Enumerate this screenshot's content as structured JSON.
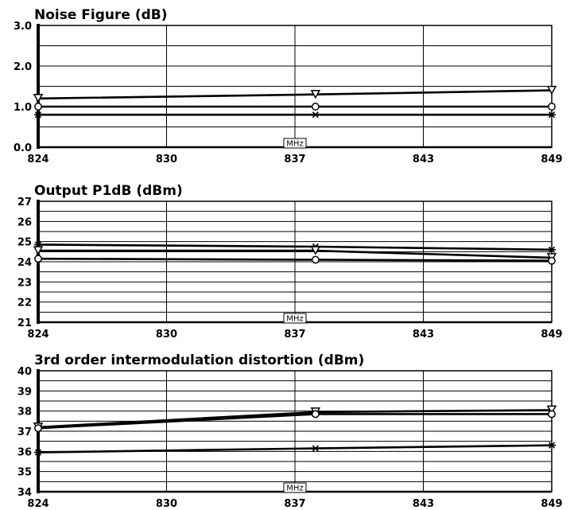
{
  "chart_data": [
    {
      "type": "line",
      "title": "Noise Figure (dB)",
      "unit_label": "MHz",
      "x": [
        824,
        837.5,
        849
      ],
      "x_ticks": [
        "824",
        "830",
        "837",
        "843",
        "849"
      ],
      "y_ticks": [
        "0.0",
        "1.0",
        "2.0",
        "3.0"
      ],
      "ylim": [
        0,
        3
      ],
      "grid": true,
      "series": [
        {
          "marker": "triangle",
          "values": [
            1.2,
            1.3,
            1.4
          ]
        },
        {
          "marker": "circle",
          "values": [
            1.0,
            1.0,
            1.0
          ]
        },
        {
          "marker": "asterisk",
          "values": [
            0.8,
            0.8,
            0.8
          ]
        }
      ]
    },
    {
      "type": "line",
      "title": "Output P1dB (dBm)",
      "unit_label": "MHz",
      "x": [
        824,
        837.5,
        849
      ],
      "x_ticks": [
        "824",
        "830",
        "837",
        "843",
        "849"
      ],
      "y_ticks": [
        "21",
        "22",
        "23",
        "24",
        "25",
        "26",
        "27"
      ],
      "ylim": [
        21,
        27
      ],
      "grid": true,
      "series": [
        {
          "marker": "asterisk",
          "values": [
            24.85,
            24.75,
            24.6
          ]
        },
        {
          "marker": "triangle",
          "values": [
            24.55,
            24.55,
            24.2
          ]
        },
        {
          "marker": "circle",
          "values": [
            24.15,
            24.1,
            24.05
          ]
        }
      ]
    },
    {
      "type": "line",
      "title": "3rd order intermodulation distortion (dBm)",
      "unit_label": "MHz",
      "x": [
        824,
        837.5,
        849
      ],
      "x_ticks": [
        "824",
        "830",
        "837",
        "843",
        "849"
      ],
      "y_ticks": [
        "34",
        "35",
        "36",
        "37",
        "38",
        "39",
        "40"
      ],
      "ylim": [
        34,
        40
      ],
      "grid": true,
      "series": [
        {
          "marker": "triangle",
          "values": [
            37.2,
            37.95,
            38.05
          ]
        },
        {
          "marker": "circle",
          "values": [
            37.15,
            37.85,
            37.85
          ]
        },
        {
          "marker": "asterisk",
          "values": [
            35.95,
            36.15,
            36.3
          ]
        }
      ]
    }
  ]
}
